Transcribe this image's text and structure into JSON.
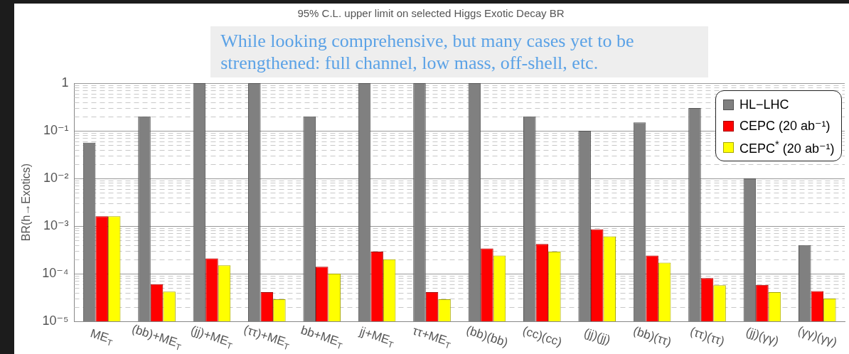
{
  "chart_data": {
    "type": "bar",
    "title": "95% C.L. upper limit on selected Higgs Exotic Decay BR",
    "ylabel": "BR(h→Exotics)",
    "categories": [
      "ME$_{T}$",
      "(bb)+ME$_{T}$",
      "(jj)+ME$_{T}$",
      "(ττ)+ME$_{T}$",
      "bb+ME$_{T}$",
      "jj+ME$_{T}$",
      "ττ+ME$_{T}$",
      "(bb)(bb)",
      "(cc)(cc)",
      "(jj)(jj)",
      "(bb)(ττ)",
      "(ττ)(ττ)",
      "(jj)(γγ)",
      "(γγ)(γγ)"
    ],
    "series": [
      {
        "name": "HL−LHC",
        "color": "#808080",
        "values": [
          0.056,
          0.2,
          1,
          1,
          0.2,
          1,
          1,
          1,
          0.2,
          0.1,
          0.15,
          0.3,
          0.01,
          0.0004
        ]
      },
      {
        "name": "CEPC (20 ab⁻¹)",
        "color": "#ff0000",
        "values": [
          0.0016,
          6e-05,
          0.00021,
          4.1e-05,
          0.00014,
          0.00029,
          4.1e-05,
          0.00034,
          0.00042,
          0.00086,
          0.00024,
          8.1e-05,
          5.8e-05,
          4.3e-05
        ]
      },
      {
        "name": "CEPC$^{*}$ (20 ab⁻¹)",
        "color": "#ffff00",
        "values": [
          0.0016,
          4.2e-05,
          0.00015,
          2.9e-05,
          0.0001,
          0.0002,
          2.9e-05,
          0.00024,
          0.00029,
          0.00061,
          0.00017,
          5.7e-05,
          4.1e-05,
          3e-05
        ]
      }
    ],
    "ylim": [
      1e-05,
      1
    ],
    "yticks": [
      {
        "value": 1e-05,
        "label": "10⁻⁵"
      },
      {
        "value": 0.0001,
        "label": "10⁻⁴"
      },
      {
        "value": 0.001,
        "label": "10⁻³"
      },
      {
        "value": 0.01,
        "label": "10⁻²"
      },
      {
        "value": 0.1,
        "label": "10⁻¹"
      },
      1
    ],
    "log": true,
    "grid": "y",
    "legend": "top right",
    "annotations": [
      "While looking comprehensive, but many cases yet to be strengthened: full channel, low mass, off-shell, etc."
    ]
  }
}
